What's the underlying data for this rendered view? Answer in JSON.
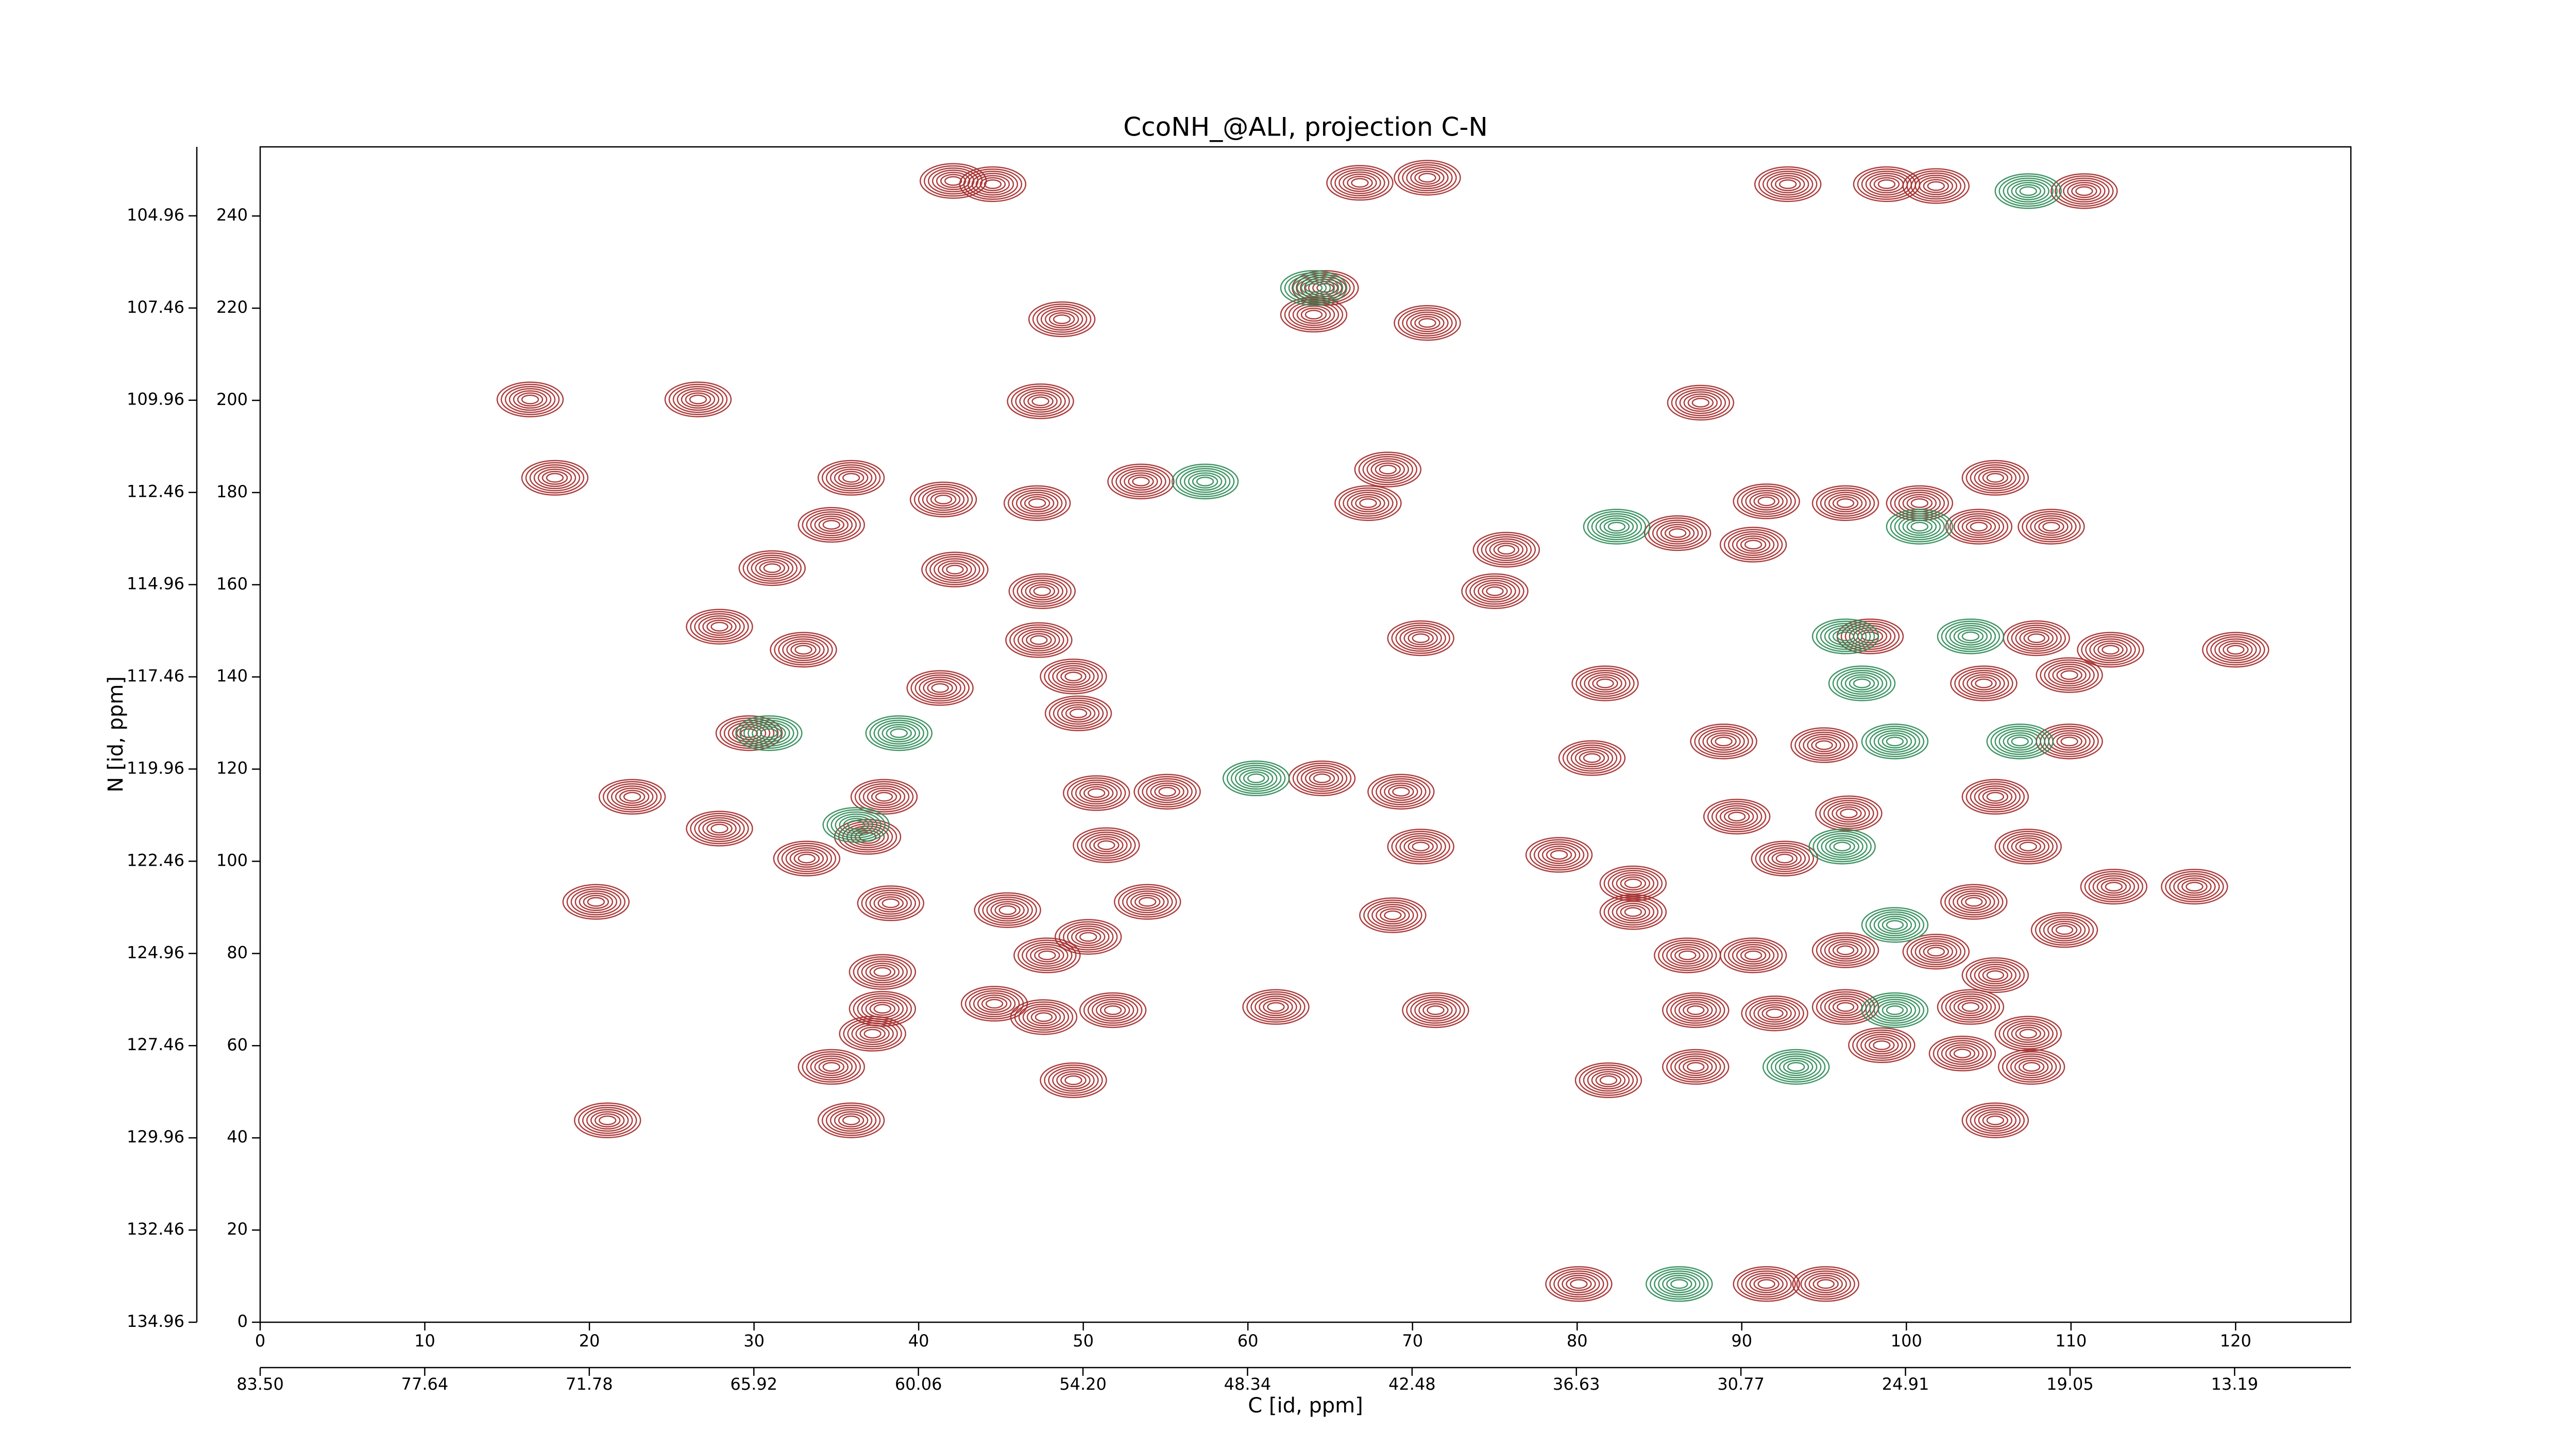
{
  "chart_data": {
    "type": "contour",
    "title": "CcoNH_@ALI, projection C-N",
    "xlabel": "C [id, ppm]",
    "ylabel": "N [id, ppm]",
    "xlim": [
      0,
      127
    ],
    "xticks": [
      0,
      10,
      20,
      30,
      40,
      50,
      60,
      70,
      80,
      90,
      100,
      110,
      120
    ],
    "ylim": [
      0,
      255
    ],
    "yticks": [
      0,
      20,
      40,
      60,
      80,
      100,
      120,
      140,
      160,
      180,
      200,
      220,
      240
    ],
    "x2lim": [
      83.5,
      9.05
    ],
    "x2ticks": [
      {
        "value": 83.5,
        "label": "83.50"
      },
      77.64,
      71.78,
      65.92,
      60.06,
      {
        "value": 54.2,
        "label": "54.20"
      },
      48.34,
      42.48,
      36.63,
      30.77,
      24.91,
      19.05,
      13.19
    ],
    "y2lim": [
      134.96,
      103.09
    ],
    "y2ticks": [
      134.96,
      132.46,
      129.96,
      127.46,
      124.96,
      122.46,
      119.96,
      117.46,
      114.96,
      112.46,
      109.96,
      107.46,
      104.96
    ],
    "series": [
      {
        "color": "#a52a2a",
        "x": [
          42.1,
          44.5,
          66.8,
          70.9,
          98.8,
          101.8,
          110.8,
          92.8,
          64.7,
          64.0,
          48.7,
          70.9,
          26.6,
          16.4,
          47.4,
          87.5,
          17.9,
          35.9,
          53.5,
          68.5,
          105.4,
          41.5,
          47.2,
          67.3,
          91.5,
          96.3,
          100.8,
          86.1,
          34.7,
          104.4,
          108.8,
          75.7,
          90.7,
          31.1,
          42.2,
          47.5,
          75.0,
          27.9,
          33.0,
          47.3,
          70.5,
          97.8,
          107.9,
          112.4,
          120.0,
          49.4,
          41.3,
          81.7,
          104.7,
          109.9,
          29.7,
          49.7,
          88.9,
          95.0,
          109.9,
          80.9,
          64.5,
          69.3,
          50.8,
          55.1,
          37.9,
          22.6,
          27.9,
          89.7,
          96.5,
          105.4,
          33.2,
          36.9,
          51.4,
          70.5,
          78.9,
          92.6,
          83.4,
          107.4,
          112.6,
          117.5,
          20.4,
          38.3,
          45.4,
          53.9,
          68.8,
          83.4,
          104.1,
          109.6,
          50.3,
          47.8,
          86.7,
          90.7,
          96.3,
          101.8,
          37.8,
          105.4,
          37.8,
          44.6,
          47.6,
          51.8,
          61.7,
          71.4,
          87.2,
          92.0,
          96.3,
          103.9,
          37.2,
          98.5,
          103.4,
          107.4,
          34.7,
          49.4,
          81.9,
          87.2,
          107.6,
          21.1,
          35.9,
          105.4,
          80.1,
          91.5,
          95.1
        ],
        "values": [
          247.6,
          246.9,
          247.2,
          248.3,
          246.9,
          246.5,
          245.4,
          246.9,
          224.4,
          218.6,
          217.6,
          216.8,
          200.2,
          200.2,
          199.8,
          199.5,
          183.2,
          183.2,
          182.4,
          185.0,
          183.2,
          178.5,
          177.7,
          177.7,
          178.1,
          177.7,
          177.7,
          171.2,
          173.0,
          172.6,
          172.6,
          167.6,
          168.7,
          163.6,
          163.3,
          158.6,
          158.6,
          150.9,
          145.9,
          148.0,
          148.4,
          148.8,
          148.4,
          145.9,
          145.9,
          140.1,
          137.6,
          138.6,
          138.6,
          140.4,
          127.8,
          132.1,
          126.0,
          125.2,
          126.0,
          122.4,
          118.0,
          115.1,
          114.8,
          115.1,
          114.0,
          114.0,
          107.1,
          109.7,
          110.4,
          114.0,
          100.6,
          105.3,
          103.5,
          103.2,
          101.4,
          100.6,
          95.2,
          103.2,
          94.5,
          94.5,
          91.2,
          90.9,
          89.4,
          91.2,
          88.3,
          89.0,
          91.2,
          85.1,
          83.6,
          79.6,
          79.6,
          79.6,
          80.7,
          80.4,
          76.0,
          75.3,
          68.0,
          69.1,
          66.2,
          67.7,
          68.4,
          67.7,
          67.7,
          67.0,
          68.4,
          68.4,
          62.6,
          60.1,
          58.3,
          62.6,
          55.4,
          52.5,
          52.5,
          55.4,
          55.4,
          43.8,
          43.8,
          43.8,
          8.3,
          8.3,
          8.3
        ]
      },
      {
        "color": "#2e8b57",
        "x": [
          30.9,
          38.8,
          36.2,
          57.4,
          82.4,
          100.8,
          96.3,
          103.9,
          97.3,
          106.9,
          99.3,
          96.1,
          99.3,
          93.3,
          86.2,
          64.0,
          107.4,
          60.5,
          99.3
        ],
        "values": [
          127.8,
          127.8,
          107.9,
          182.4,
          172.6,
          172.6,
          148.8,
          148.8,
          138.6,
          126.0,
          126.0,
          103.2,
          86.2,
          55.4,
          8.3,
          224.4,
          245.4,
          118.0,
          67.7
        ]
      }
    ]
  }
}
